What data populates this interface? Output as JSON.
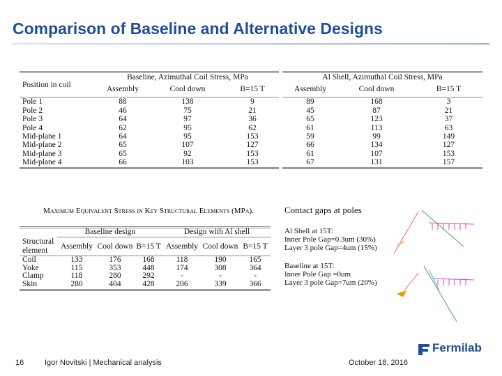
{
  "header": {
    "title": "Comparison of Baseline and Alternative Designs"
  },
  "baseline_table": {
    "title": "Baseline, Azimuthal Coil Stress, MPa",
    "row_header": "Position in coil",
    "columns": [
      "Assembly",
      "Cool down",
      "B=15 T"
    ],
    "rows": [
      [
        "Pole 1",
        88,
        138,
        9
      ],
      [
        "Pole 2",
        46,
        75,
        21
      ],
      [
        "Pole 3",
        64,
        97,
        36
      ],
      [
        "Pole 4",
        62,
        95,
        62
      ],
      [
        "Mid-plane 1",
        64,
        95,
        153
      ],
      [
        "Mid-plane 2",
        65,
        107,
        127
      ],
      [
        "Mid-plane 3",
        65,
        92,
        153
      ],
      [
        "Mid-plane 4",
        66,
        103,
        153
      ]
    ]
  },
  "al_table": {
    "title": "Al Shell, Azimuthal Coil Stress, MPa",
    "columns": [
      "Assembly",
      "Cool down",
      "B=15 T"
    ],
    "rows": [
      [
        89,
        168,
        3
      ],
      [
        45,
        87,
        21
      ],
      [
        65,
        123,
        37
      ],
      [
        61,
        113,
        63
      ],
      [
        59,
        99,
        149
      ],
      [
        66,
        134,
        127
      ],
      [
        61,
        107,
        153
      ],
      [
        67,
        131,
        157
      ]
    ]
  },
  "structural_table": {
    "caption": "Maximum Equivalent Stress in Key Structural Elements (MPa).",
    "row_header": "Structural element",
    "groups": [
      "Baseline design",
      "Design with Al shell"
    ],
    "columns": [
      "Assembly",
      "Cool down",
      "B=15 T",
      "Assembly",
      "Cool down",
      "B=15 T"
    ],
    "rows": [
      [
        "Coil",
        133,
        176,
        168,
        118,
        190,
        165
      ],
      [
        "Yoke",
        115,
        353,
        448,
        174,
        308,
        364
      ],
      [
        "Clamp",
        118,
        280,
        292,
        "-",
        "-",
        "-"
      ],
      [
        "Skin",
        280,
        404,
        428,
        206,
        339,
        366
      ]
    ]
  },
  "notes": {
    "title": "Contact gaps at poles",
    "blocks": [
      [
        "Al Shell at 15T:",
        "Inner Pole Gap=0.3um (30%)",
        "Layer 3 pole Gap=4um (15%)"
      ],
      [
        "Baseline at 15T:",
        "Inner Pole Gap =0um",
        "Layer 3 pole Gap=7um (20%)"
      ]
    ]
  },
  "footer": {
    "page": "16",
    "author": "Igor Novitski | Mechanical analysis",
    "date": "October 18, 2016",
    "logo": "Fermilab"
  }
}
